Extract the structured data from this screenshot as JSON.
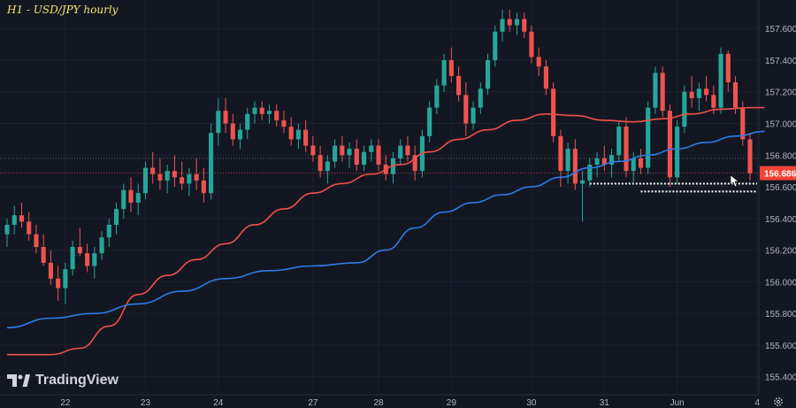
{
  "title": "H1 - USD/JPY hourly",
  "brand": {
    "name": "TradingView",
    "icon": "tradingview-logo-icon"
  },
  "colors": {
    "background": "#131722",
    "grid": "#1e2230",
    "axis_text": "#b2b5be",
    "bull": "#26a69a",
    "bear": "#ef5350",
    "ma_fast": "#f0514a",
    "ma_slow": "#2f7be8",
    "price_badge": "#f44336",
    "title": "#f5e663"
  },
  "chart_data": {
    "type": "candlestick",
    "y_axis": {
      "min": 155.32,
      "max": 157.78,
      "ticks": [
        "157.600",
        "157.400",
        "157.200",
        "157.000",
        "156.800",
        "156.600",
        "156.400",
        "156.200",
        "156.000",
        "155.800",
        "155.600",
        "155.400"
      ]
    },
    "x_axis": {
      "labels": [
        "22",
        "23",
        "24",
        "27",
        "28",
        "29",
        "30",
        "31",
        "Jun",
        "4"
      ],
      "label_index": [
        8,
        19,
        29,
        42,
        51,
        61,
        72,
        82,
        92,
        103
      ]
    },
    "last_price": {
      "value": 156.686,
      "label": "156.686"
    },
    "current_price_line": 156.78,
    "support_levels": [
      156.62,
      156.57
    ],
    "ohlc": [
      [
        156.3,
        156.4,
        156.22,
        156.36
      ],
      [
        156.36,
        156.48,
        156.3,
        156.42
      ],
      [
        156.42,
        156.5,
        156.34,
        156.38
      ],
      [
        156.38,
        156.44,
        156.26,
        156.3
      ],
      [
        156.3,
        156.36,
        156.18,
        156.22
      ],
      [
        156.22,
        156.3,
        156.1,
        156.12
      ],
      [
        156.12,
        156.2,
        155.98,
        156.02
      ],
      [
        156.02,
        156.1,
        155.88,
        155.96
      ],
      [
        155.96,
        156.12,
        155.86,
        156.08
      ],
      [
        156.08,
        156.26,
        156.04,
        156.22
      ],
      [
        156.22,
        156.34,
        156.16,
        156.18
      ],
      [
        156.18,
        156.24,
        156.06,
        156.1
      ],
      [
        156.1,
        156.22,
        156.02,
        156.18
      ],
      [
        156.18,
        156.32,
        156.14,
        156.28
      ],
      [
        156.28,
        156.4,
        156.22,
        156.36
      ],
      [
        156.36,
        156.5,
        156.3,
        156.46
      ],
      [
        156.46,
        156.62,
        156.4,
        156.58
      ],
      [
        156.58,
        156.66,
        156.44,
        156.5
      ],
      [
        156.5,
        156.62,
        156.42,
        156.56
      ],
      [
        156.56,
        156.76,
        156.52,
        156.72
      ],
      [
        156.72,
        156.82,
        156.62,
        156.68
      ],
      [
        156.68,
        156.78,
        156.58,
        156.64
      ],
      [
        156.64,
        156.74,
        156.56,
        156.7
      ],
      [
        156.7,
        156.8,
        156.6,
        156.66
      ],
      [
        156.66,
        156.76,
        156.58,
        156.62
      ],
      [
        156.62,
        156.72,
        156.54,
        156.68
      ],
      [
        156.68,
        156.78,
        156.58,
        156.64
      ],
      [
        156.64,
        156.72,
        156.5,
        156.56
      ],
      [
        156.56,
        157.0,
        156.52,
        156.94
      ],
      [
        156.94,
        157.16,
        156.86,
        157.08
      ],
      [
        157.08,
        157.16,
        156.94,
        157.0
      ],
      [
        157.0,
        157.06,
        156.86,
        156.9
      ],
      [
        156.9,
        157.0,
        156.84,
        156.96
      ],
      [
        156.96,
        157.1,
        156.9,
        157.06
      ],
      [
        157.06,
        157.14,
        157.0,
        157.1
      ],
      [
        157.1,
        157.14,
        157.02,
        157.06
      ],
      [
        157.06,
        157.12,
        157.0,
        157.08
      ],
      [
        157.08,
        157.12,
        156.98,
        157.02
      ],
      [
        157.02,
        157.08,
        156.94,
        156.98
      ],
      [
        156.98,
        157.04,
        156.86,
        156.9
      ],
      [
        156.9,
        157.0,
        156.84,
        156.96
      ],
      [
        156.96,
        157.02,
        156.82,
        156.86
      ],
      [
        156.86,
        156.92,
        156.76,
        156.8
      ],
      [
        156.8,
        156.86,
        156.66,
        156.7
      ],
      [
        156.7,
        156.8,
        156.62,
        156.76
      ],
      [
        156.76,
        156.9,
        156.72,
        156.86
      ],
      [
        156.86,
        156.92,
        156.76,
        156.8
      ],
      [
        156.8,
        156.88,
        156.72,
        156.84
      ],
      [
        156.84,
        156.9,
        156.7,
        156.74
      ],
      [
        156.74,
        156.86,
        156.7,
        156.82
      ],
      [
        156.82,
        156.9,
        156.76,
        156.86
      ],
      [
        156.86,
        156.9,
        156.7,
        156.74
      ],
      [
        156.74,
        156.8,
        156.64,
        156.68
      ],
      [
        156.68,
        156.82,
        156.62,
        156.78
      ],
      [
        156.78,
        156.9,
        156.74,
        156.86
      ],
      [
        156.86,
        156.92,
        156.76,
        156.8
      ],
      [
        156.8,
        156.86,
        156.64,
        156.7
      ],
      [
        156.7,
        156.96,
        156.66,
        156.92
      ],
      [
        156.92,
        157.14,
        156.88,
        157.1
      ],
      [
        157.1,
        157.28,
        157.06,
        157.24
      ],
      [
        157.24,
        157.44,
        157.2,
        157.4
      ],
      [
        157.4,
        157.48,
        157.26,
        157.3
      ],
      [
        157.3,
        157.36,
        157.14,
        157.18
      ],
      [
        157.18,
        157.26,
        156.92,
        157.0
      ],
      [
        157.0,
        157.14,
        156.96,
        157.1
      ],
      [
        157.1,
        157.26,
        157.06,
        157.22
      ],
      [
        157.22,
        157.44,
        157.18,
        157.4
      ],
      [
        157.4,
        157.62,
        157.36,
        157.58
      ],
      [
        157.58,
        157.72,
        157.52,
        157.66
      ],
      [
        157.66,
        157.72,
        157.58,
        157.62
      ],
      [
        157.62,
        157.7,
        157.56,
        157.66
      ],
      [
        157.66,
        157.7,
        157.54,
        157.58
      ],
      [
        157.58,
        157.62,
        157.38,
        157.42
      ],
      [
        157.42,
        157.48,
        157.3,
        157.36
      ],
      [
        157.36,
        157.4,
        157.18,
        157.22
      ],
      [
        157.22,
        157.26,
        156.88,
        156.92
      ],
      [
        156.92,
        156.96,
        156.6,
        156.7
      ],
      [
        156.7,
        156.88,
        156.62,
        156.84
      ],
      [
        156.84,
        156.9,
        156.58,
        156.62
      ],
      [
        156.62,
        156.7,
        156.38,
        156.64
      ],
      [
        156.64,
        156.78,
        156.6,
        156.74
      ],
      [
        156.74,
        156.82,
        156.66,
        156.78
      ],
      [
        156.78,
        156.86,
        156.7,
        156.74
      ],
      [
        156.74,
        156.84,
        156.66,
        156.8
      ],
      [
        156.8,
        157.02,
        156.76,
        156.98
      ],
      [
        156.98,
        157.04,
        156.66,
        156.7
      ],
      [
        156.7,
        156.82,
        156.62,
        156.78
      ],
      [
        156.78,
        156.84,
        156.68,
        156.72
      ],
      [
        156.72,
        157.14,
        156.68,
        157.1
      ],
      [
        157.1,
        157.36,
        157.06,
        157.32
      ],
      [
        157.32,
        157.36,
        157.04,
        157.08
      ],
      [
        157.08,
        157.12,
        156.6,
        156.66
      ],
      [
        156.66,
        157.02,
        156.62,
        156.98
      ],
      [
        156.98,
        157.24,
        156.94,
        157.2
      ],
      [
        157.2,
        157.3,
        157.1,
        157.16
      ],
      [
        157.16,
        157.26,
        157.08,
        157.22
      ],
      [
        157.22,
        157.3,
        157.14,
        157.18
      ],
      [
        157.18,
        157.24,
        157.06,
        157.1
      ],
      [
        157.1,
        157.48,
        157.06,
        157.44
      ],
      [
        157.44,
        157.46,
        157.2,
        157.26
      ],
      [
        157.26,
        157.3,
        157.06,
        157.1
      ],
      [
        157.1,
        157.14,
        156.86,
        156.9
      ],
      [
        156.9,
        156.94,
        156.64,
        156.686
      ]
    ],
    "moving_averages": [
      {
        "points": [
          [
            0,
            155.54
          ],
          [
            6,
            155.54
          ],
          [
            10,
            155.58
          ],
          [
            14,
            155.72
          ],
          [
            18,
            155.92
          ],
          [
            22,
            156.04
          ],
          [
            26,
            156.14
          ],
          [
            30,
            156.24
          ],
          [
            34,
            156.36
          ],
          [
            38,
            156.46
          ],
          [
            42,
            156.56
          ],
          [
            46,
            156.62
          ],
          [
            50,
            156.68
          ],
          [
            54,
            156.74
          ],
          [
            58,
            156.82
          ],
          [
            62,
            156.9
          ],
          [
            66,
            156.96
          ],
          [
            70,
            157.02
          ],
          [
            74,
            157.06
          ],
          [
            78,
            157.05
          ],
          [
            82,
            157.02
          ],
          [
            86,
            157.01
          ],
          [
            90,
            157.03
          ],
          [
            94,
            157.06
          ],
          [
            98,
            157.09
          ],
          [
            102,
            157.1
          ],
          [
            104,
            157.1
          ]
        ]
      },
      {
        "points": [
          [
            0,
            155.71
          ],
          [
            6,
            155.77
          ],
          [
            12,
            155.8
          ],
          [
            18,
            155.86
          ],
          [
            24,
            155.94
          ],
          [
            30,
            156.02
          ],
          [
            36,
            156.07
          ],
          [
            42,
            156.1
          ],
          [
            48,
            156.12
          ],
          [
            52,
            156.2
          ],
          [
            56,
            156.34
          ],
          [
            60,
            156.44
          ],
          [
            64,
            156.5
          ],
          [
            68,
            156.55
          ],
          [
            72,
            156.6
          ],
          [
            76,
            156.66
          ],
          [
            80,
            156.72
          ],
          [
            84,
            156.76
          ],
          [
            88,
            156.8
          ],
          [
            92,
            156.84
          ],
          [
            96,
            156.88
          ],
          [
            100,
            156.92
          ],
          [
            104,
            156.95
          ]
        ]
      }
    ]
  }
}
